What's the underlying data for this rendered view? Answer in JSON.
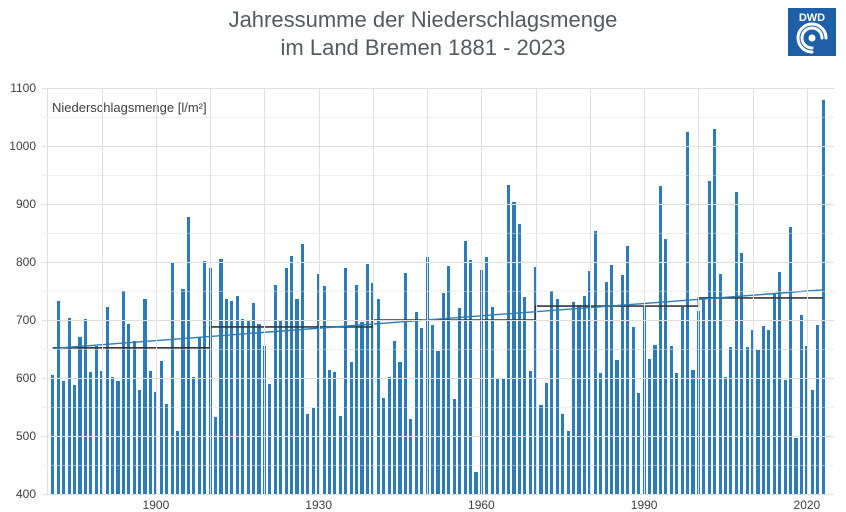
{
  "title": {
    "line1": "Jahressumme der Niederschlagsmenge",
    "line2": "im Land Bremen 1881 - 2023",
    "color": "#555a5f",
    "fontsize": 22
  },
  "logo": {
    "label": "DWD",
    "bg_color": "#1f5fa8",
    "text_color": "#ffffff"
  },
  "chart": {
    "type": "bar",
    "subtitle": "Niederschlagsmenge [l/m²]",
    "subtitle_fontsize": 13,
    "background_color": "#ffffff",
    "grid_color": "#e0e0e0",
    "bar_color": "#2d7bb8",
    "bar_width_ratio": 0.58,
    "x": {
      "min": 1879,
      "max": 2025,
      "ticks": [
        1900,
        1930,
        1960,
        1990,
        2020
      ],
      "minor_step": 10
    },
    "y": {
      "min": 400,
      "max": 1100,
      "ticks": [
        400,
        500,
        600,
        700,
        800,
        900,
        1000,
        1100
      ],
      "minor_step": 50
    },
    "years_start": 1881,
    "values": [
      605,
      733,
      595,
      704,
      588,
      671,
      702,
      610,
      655,
      612,
      722,
      601,
      595,
      750,
      693,
      663,
      580,
      736,
      612,
      576,
      630,
      555,
      799,
      508,
      753,
      878,
      602,
      671,
      802,
      790,
      532,
      806,
      737,
      732,
      741,
      702,
      698,
      730,
      693,
      655,
      589,
      760,
      700,
      790,
      810,
      736,
      831,
      538,
      548,
      780,
      758,
      613,
      611,
      535,
      790,
      628,
      761,
      697,
      796,
      763,
      737,
      565,
      602,
      664,
      628,
      781,
      529,
      713,
      686,
      808,
      691,
      647,
      747,
      793,
      563,
      721,
      836,
      804,
      438,
      786,
      808,
      723,
      600,
      600,
      932,
      903,
      865,
      740,
      612,
      792,
      554,
      592,
      750,
      737,
      538,
      508,
      731,
      726,
      742,
      784,
      853,
      608,
      766,
      794,
      631,
      778,
      827,
      688,
      574,
      723,
      633,
      657,
      931,
      839,
      656,
      608,
      722,
      1024,
      614,
      715,
      738,
      939,
      1030,
      780,
      602,
      653,
      921,
      816,
      653,
      683,
      649,
      690,
      682,
      746,
      782,
      596,
      860,
      497,
      709,
      655,
      579,
      691,
      1080
    ],
    "trend_lines": [
      {
        "segments": [
          [
            1881,
            652
          ],
          [
            1910,
            652
          ],
          [
            1910,
            688
          ],
          [
            1940,
            688
          ],
          [
            1940,
            700
          ],
          [
            1970,
            700
          ],
          [
            1970,
            724
          ],
          [
            2000,
            724
          ],
          [
            2000,
            738
          ],
          [
            2023,
            738
          ]
        ],
        "color": "#35383a",
        "width": 1.6
      },
      {
        "segments": [
          [
            1881,
            651
          ],
          [
            2023,
            752
          ]
        ],
        "color": "#2d7bb8",
        "width": 1.4
      }
    ]
  },
  "axis_label_color": "#404040",
  "axis_label_fontsize": 12
}
